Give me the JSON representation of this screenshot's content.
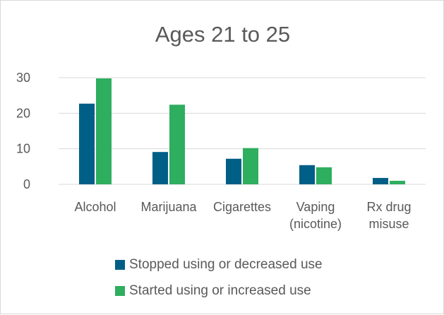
{
  "chart_data": {
    "type": "bar",
    "title": "Ages 21 to 25",
    "categories": [
      [
        "Alcohol"
      ],
      [
        "Marijuana"
      ],
      [
        "Cigarettes"
      ],
      [
        "Vaping",
        "(nicotine)"
      ],
      [
        "Rx drug",
        "misuse"
      ]
    ],
    "series": [
      {
        "name": "Stopped using or decreased use",
        "color": "#005f86",
        "values": [
          22.7,
          9.1,
          7.2,
          5.4,
          1.8
        ]
      },
      {
        "name": "Started using or increased use",
        "color": "#2eae5f",
        "values": [
          29.8,
          22.4,
          10.2,
          4.8,
          1.0
        ]
      }
    ],
    "yticks": [
      "0",
      "10",
      "20",
      "30"
    ],
    "ylim": [
      0,
      30
    ],
    "grid": true,
    "legend_position": "bottom"
  }
}
